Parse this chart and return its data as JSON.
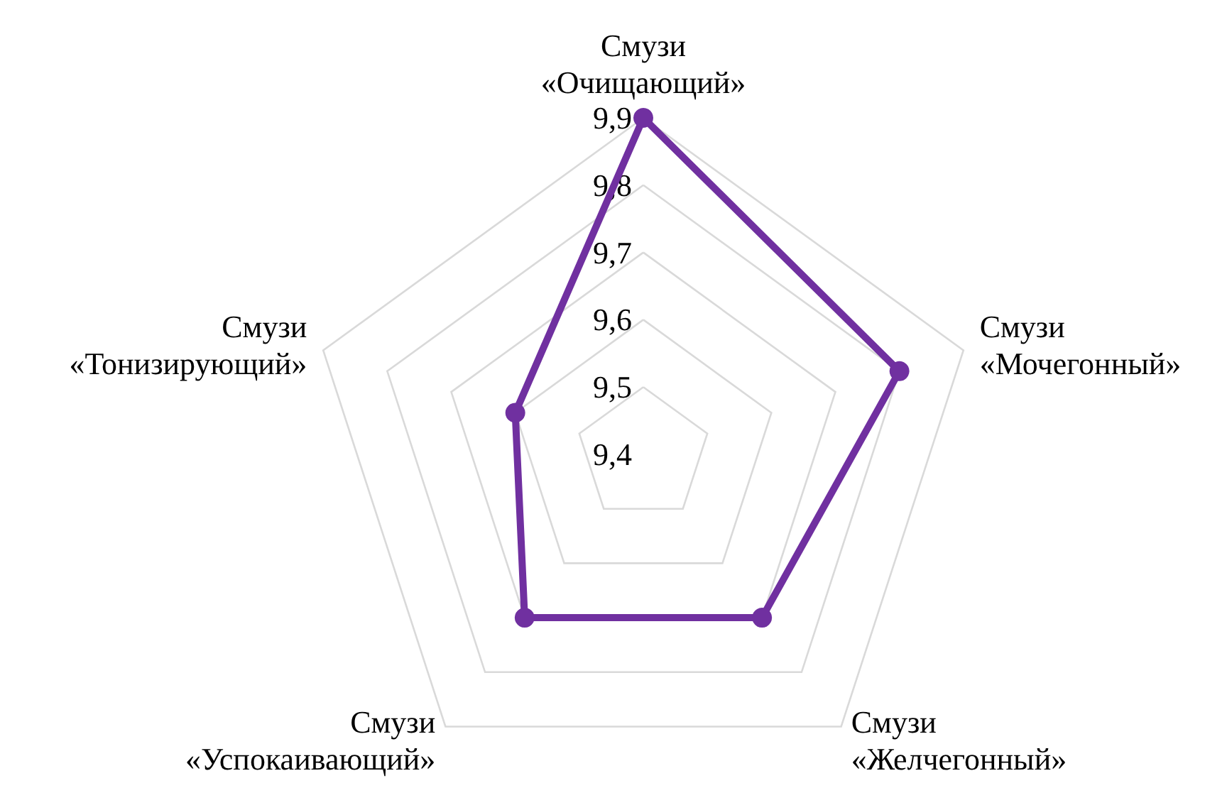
{
  "chart_data": {
    "type": "radar",
    "categories": [
      "Смузи «Очищающий»",
      "Смузи «Мочегонный»",
      "Смузи «Желчегонный»",
      "Смузи «Успокаивающий»",
      "Смузи «Тонизирующий»"
    ],
    "series": [
      {
        "color": "#7030a0",
        "values": [
          9.9,
          9.8,
          9.7,
          9.7,
          9.6
        ]
      }
    ],
    "ylim": [
      9.4,
      9.9
    ],
    "yticks": [
      {
        "value": 9.4,
        "label": "9,4"
      },
      {
        "value": 9.5,
        "label": "9,5"
      },
      {
        "value": 9.6,
        "label": "9,6"
      },
      {
        "value": 9.7,
        "label": "9,7"
      },
      {
        "value": 9.8,
        "label": "9,8"
      },
      {
        "value": 9.9,
        "label": "9,9"
      }
    ],
    "grid": true,
    "marker": "circle"
  }
}
